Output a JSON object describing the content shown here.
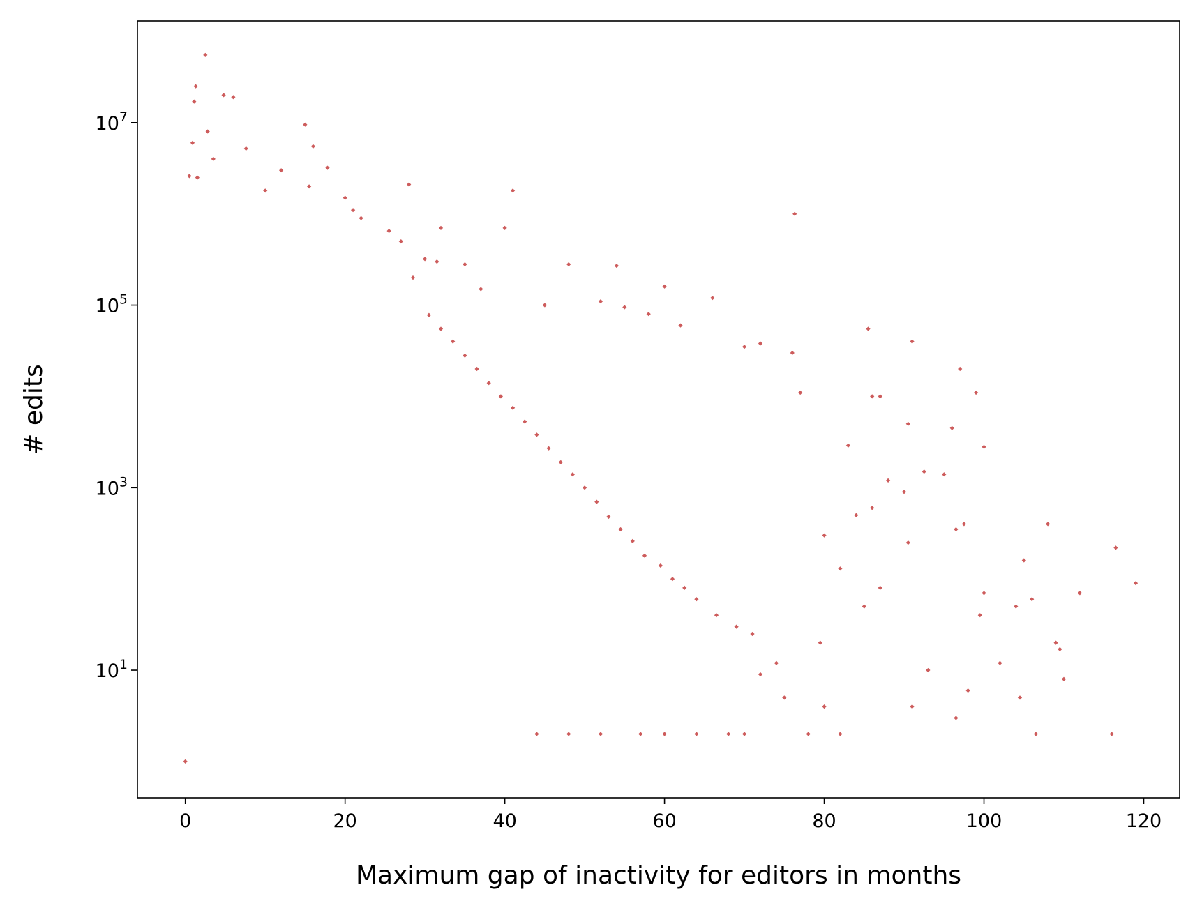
{
  "chart_data": {
    "type": "scatter",
    "title": "",
    "xlabel": "Maximum gap of inactivity for editors in months",
    "ylabel": "# edits",
    "xlim": [
      -6,
      124.5
    ],
    "ylim": [
      0.4,
      130000000
    ],
    "y_scale": "log",
    "grid": false,
    "legend": "none",
    "marker_color": "#cd5c5c",
    "x_ticks": [
      {
        "value": 0,
        "label": "0"
      },
      {
        "value": 20,
        "label": "20"
      },
      {
        "value": 40,
        "label": "40"
      },
      {
        "value": 60,
        "label": "60"
      },
      {
        "value": 80,
        "label": "80"
      },
      {
        "value": 100,
        "label": "100"
      },
      {
        "value": 120,
        "label": "120"
      }
    ],
    "y_ticks": [
      {
        "value": 10,
        "base": "10",
        "exp": "1"
      },
      {
        "value": 1000,
        "base": "10",
        "exp": "3"
      },
      {
        "value": 100000,
        "base": "10",
        "exp": "5"
      },
      {
        "value": 10000000,
        "base": "10",
        "exp": "7"
      }
    ],
    "points": [
      [
        2.5,
        55000000
      ],
      [
        1.3,
        25000000
      ],
      [
        1.1,
        17000000
      ],
      [
        4.8,
        20000000
      ],
      [
        6.0,
        19000000
      ],
      [
        15.0,
        9500000
      ],
      [
        2.8,
        8000000
      ],
      [
        0.9,
        6000000
      ],
      [
        7.6,
        5200000
      ],
      [
        16.0,
        5500000
      ],
      [
        3.5,
        4000000
      ],
      [
        17.8,
        3200000
      ],
      [
        12.0,
        3000000
      ],
      [
        0.5,
        2600000
      ],
      [
        1.5,
        2500000
      ],
      [
        28.0,
        2100000
      ],
      [
        41.0,
        1800000
      ],
      [
        15.5,
        2000000
      ],
      [
        10.0,
        1800000
      ],
      [
        20.0,
        1500000
      ],
      [
        21.0,
        1100000
      ],
      [
        22.0,
        900000
      ],
      [
        32.0,
        700000
      ],
      [
        40.0,
        700000
      ],
      [
        25.5,
        650000
      ],
      [
        76.3,
        1000000
      ],
      [
        27.0,
        500000
      ],
      [
        30.0,
        320000
      ],
      [
        35.0,
        280000
      ],
      [
        31.5,
        300000
      ],
      [
        48.0,
        280000
      ],
      [
        54.0,
        270000
      ],
      [
        28.5,
        200000
      ],
      [
        37.0,
        150000
      ],
      [
        60.0,
        160000
      ],
      [
        66.0,
        120000
      ],
      [
        52.0,
        110000
      ],
      [
        45.0,
        100000
      ],
      [
        55.0,
        95000
      ],
      [
        58.0,
        80000
      ],
      [
        62.0,
        60000
      ],
      [
        85.5,
        55000
      ],
      [
        91.0,
        40000
      ],
      [
        70.0,
        35000
      ],
      [
        72.0,
        38000
      ],
      [
        76.0,
        30000
      ],
      [
        97.0,
        20000
      ],
      [
        99.0,
        11000
      ],
      [
        77.0,
        11000
      ],
      [
        86.0,
        10000
      ],
      [
        87.0,
        10000
      ],
      [
        90.5,
        5000
      ],
      [
        96.0,
        4500
      ],
      [
        100.0,
        2800
      ],
      [
        83.0,
        2900
      ],
      [
        92.5,
        1500
      ],
      [
        95.0,
        1400
      ],
      [
        88.0,
        1200
      ],
      [
        90.0,
        900
      ],
      [
        86.0,
        600
      ],
      [
        84.0,
        500
      ],
      [
        97.5,
        400
      ],
      [
        108.0,
        400
      ],
      [
        96.5,
        350
      ],
      [
        80.0,
        300
      ],
      [
        90.5,
        250
      ],
      [
        116.5,
        220
      ],
      [
        105.0,
        160
      ],
      [
        82.0,
        130
      ],
      [
        100.0,
        70
      ],
      [
        112.0,
        70
      ],
      [
        119.0,
        90
      ],
      [
        106.0,
        60
      ],
      [
        104.0,
        50
      ],
      [
        99.5,
        40
      ],
      [
        85.0,
        50
      ],
      [
        87.0,
        80
      ],
      [
        109.0,
        20
      ],
      [
        109.5,
        17
      ],
      [
        104.5,
        5
      ],
      [
        110.0,
        8
      ],
      [
        93.0,
        10
      ],
      [
        96.5,
        3
      ],
      [
        106.5,
        2
      ],
      [
        116.0,
        2
      ],
      [
        91.0,
        4
      ],
      [
        98.0,
        6
      ],
      [
        82.0,
        2
      ],
      [
        78.0,
        2
      ],
      [
        102.0,
        12
      ],
      [
        75.0,
        5
      ],
      [
        70.0,
        2
      ],
      [
        68.0,
        2
      ],
      [
        64.0,
        2
      ],
      [
        60.0,
        2
      ],
      [
        57.0,
        2
      ],
      [
        52.0,
        2
      ],
      [
        48.0,
        2
      ],
      [
        44.0,
        2
      ],
      [
        80.0,
        4
      ],
      [
        74.0,
        12
      ],
      [
        72.0,
        9
      ],
      [
        79.5,
        20
      ],
      [
        71.0,
        25
      ],
      [
        69.0,
        30
      ],
      [
        66.5,
        40
      ],
      [
        64.0,
        60
      ],
      [
        62.5,
        80
      ],
      [
        61.0,
        100
      ],
      [
        59.5,
        140
      ],
      [
        57.5,
        180
      ],
      [
        56.0,
        260
      ],
      [
        54.5,
        350
      ],
      [
        53.0,
        480
      ],
      [
        51.5,
        700
      ],
      [
        50.0,
        1000
      ],
      [
        48.5,
        1400
      ],
      [
        47.0,
        1900
      ],
      [
        45.5,
        2700
      ],
      [
        44.0,
        3800
      ],
      [
        42.5,
        5300
      ],
      [
        41.0,
        7500
      ],
      [
        39.5,
        10000
      ],
      [
        38.0,
        14000
      ],
      [
        36.5,
        20000
      ],
      [
        35.0,
        28000
      ],
      [
        33.5,
        40000
      ],
      [
        32.0,
        55000
      ],
      [
        30.5,
        78000
      ],
      [
        0.0,
        1
      ]
    ]
  }
}
